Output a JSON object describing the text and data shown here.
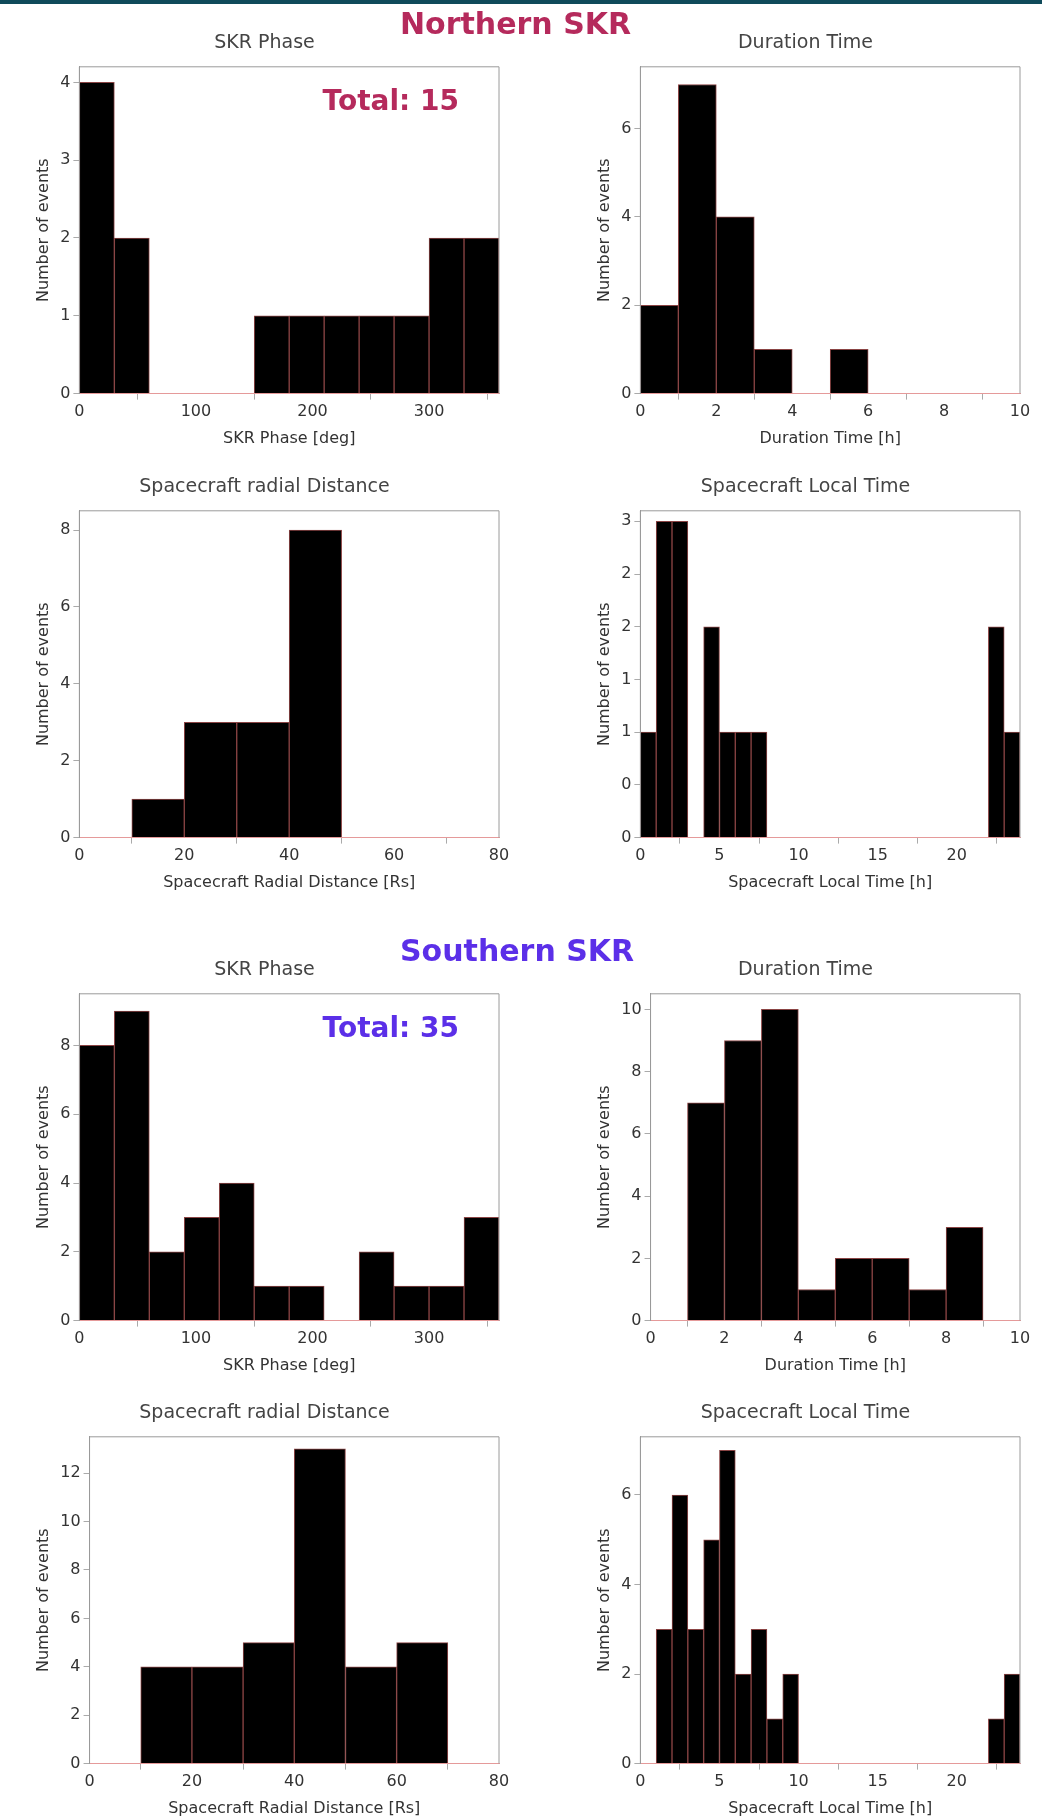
{
  "chart_data": [
    {
      "type": "histogram",
      "title": "SKR Phase",
      "xlabel": "SKR Phase [deg]",
      "ylabel": "Number of events",
      "annotations": [
        "Northern SKR",
        "Total: 15"
      ],
      "bins": [
        0,
        30,
        60,
        90,
        120,
        150,
        180,
        210,
        240,
        270,
        300,
        330,
        360
      ],
      "values": [
        4,
        2,
        0,
        0,
        0,
        1,
        1,
        1,
        1,
        1,
        2,
        2
      ],
      "color": "#000000",
      "xlim": [
        0,
        360
      ],
      "xticks": [
        0,
        100,
        200,
        300
      ],
      "ylim": [
        0,
        4.2
      ],
      "yticks": [
        0,
        1,
        2,
        3,
        4
      ]
    },
    {
      "type": "histogram",
      "title": "Duration Time",
      "xlabel": "Duration Time [h]",
      "ylabel": "Number of events",
      "bins": [
        0,
        1,
        2,
        3,
        4,
        5,
        6,
        7,
        8,
        9,
        10
      ],
      "values": [
        2,
        7,
        4,
        1,
        0,
        1,
        0,
        0,
        0,
        0
      ],
      "color": "#000000",
      "xlim": [
        0,
        10
      ],
      "xticks": [
        0,
        2,
        4,
        6,
        8,
        10
      ],
      "ylim": [
        0,
        7.4
      ],
      "yticks": [
        0,
        2,
        4,
        6
      ]
    },
    {
      "type": "histogram",
      "title": "Spacecraft radial Distance",
      "xlabel": "Spacecraft Radial Distance [Rs]",
      "ylabel": "Number of events",
      "bins": [
        0,
        10,
        20,
        30,
        40,
        50,
        60,
        70,
        80
      ],
      "values": [
        0,
        1,
        3,
        3,
        8,
        0,
        0,
        0
      ],
      "color": "#000000",
      "xlim": [
        0,
        80
      ],
      "xticks": [
        0,
        20,
        40,
        60,
        80
      ],
      "ylim": [
        0,
        8.5
      ],
      "yticks": [
        0,
        2,
        4,
        6,
        8
      ]
    },
    {
      "type": "histogram",
      "title": "Spacecraft Local Time",
      "xlabel": "Spacecraft Local Time [h]",
      "ylabel": "Number of events",
      "bins": [
        0,
        1,
        2,
        3,
        4,
        5,
        6,
        7,
        8,
        9,
        10,
        11,
        12,
        13,
        14,
        15,
        16,
        17,
        18,
        19,
        20,
        21,
        22,
        23,
        24
      ],
      "values": [
        1,
        3,
        3,
        0,
        2,
        1,
        1,
        1,
        0,
        0,
        0,
        0,
        0,
        0,
        0,
        0,
        0,
        0,
        0,
        0,
        0,
        0,
        2,
        1
      ],
      "color": "#000000",
      "xlim": [
        0,
        24
      ],
      "xticks": [
        0,
        5,
        10,
        15,
        20
      ],
      "ylim": [
        0,
        3.1
      ],
      "yticks": [
        0,
        {
          "value": 0.5,
          "label": "0"
        },
        1,
        {
          "value": 1.5,
          "label": "1"
        },
        2,
        {
          "value": 2.5,
          "label": "2"
        },
        3
      ]
    },
    {
      "type": "histogram",
      "title": "SKR Phase",
      "xlabel": "SKR Phase [deg]",
      "ylabel": "Number of events",
      "annotations": [
        "Southern SKR",
        "Total: 35"
      ],
      "bins": [
        0,
        30,
        60,
        90,
        120,
        150,
        180,
        210,
        240,
        270,
        300,
        330,
        360
      ],
      "values": [
        8,
        9,
        2,
        3,
        4,
        1,
        1,
        0,
        2,
        1,
        1,
        3
      ],
      "color": "#000000",
      "xlim": [
        0,
        360
      ],
      "xticks": [
        0,
        100,
        200,
        300
      ],
      "ylim": [
        0,
        9.5
      ],
      "yticks": [
        0,
        2,
        4,
        6,
        8
      ]
    },
    {
      "type": "histogram",
      "title": "Duration Time",
      "xlabel": "Duration Time [h]",
      "ylabel": "Number of events",
      "bins": [
        0,
        1,
        2,
        3,
        4,
        5,
        6,
        7,
        8,
        9,
        10
      ],
      "values": [
        0,
        7,
        9,
        10,
        1,
        2,
        2,
        1,
        3,
        0
      ],
      "color": "#000000",
      "xlim": [
        0,
        10
      ],
      "xticks": [
        0,
        2,
        4,
        6,
        8,
        10
      ],
      "ylim": [
        0,
        10.5
      ],
      "yticks": [
        0,
        2,
        4,
        6,
        8,
        10
      ]
    },
    {
      "type": "histogram",
      "title": "Spacecraft radial Distance",
      "xlabel": "Spacecraft Radial Distance [Rs]",
      "ylabel": "Number of events",
      "bins": [
        0,
        10,
        20,
        30,
        40,
        50,
        60,
        70,
        80
      ],
      "values": [
        0,
        4,
        4,
        5,
        13,
        4,
        5,
        0
      ],
      "color": "#000000",
      "xlim": [
        0,
        80
      ],
      "xticks": [
        0,
        20,
        40,
        60,
        80
      ],
      "ylim": [
        0,
        13.5
      ],
      "yticks": [
        0,
        2,
        4,
        6,
        8,
        10,
        12
      ]
    },
    {
      "type": "histogram",
      "title": "Spacecraft Local Time",
      "xlabel": "Spacecraft Local Time [h]",
      "ylabel": "Number of events",
      "bins": [
        0,
        1,
        2,
        3,
        4,
        5,
        6,
        7,
        8,
        9,
        10,
        11,
        12,
        13,
        14,
        15,
        16,
        17,
        18,
        19,
        20,
        21,
        22,
        23,
        24
      ],
      "values": [
        0,
        3,
        6,
        3,
        5,
        7,
        2,
        3,
        1,
        2,
        0,
        0,
        0,
        0,
        0,
        0,
        0,
        0,
        0,
        0,
        0,
        0,
        1,
        2
      ],
      "color": "#000000",
      "xlim": [
        0,
        24
      ],
      "xticks": [
        0,
        5,
        10,
        15,
        20
      ],
      "ylim": [
        0,
        7.3
      ],
      "yticks": [
        0,
        2,
        4,
        6
      ]
    }
  ]
}
